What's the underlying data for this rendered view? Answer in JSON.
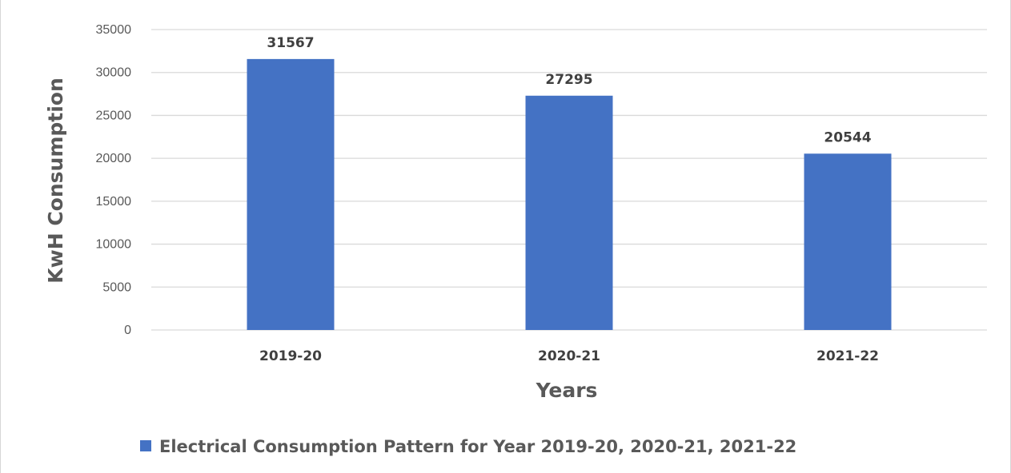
{
  "colors": {
    "bar": "#4472c4",
    "grid": "#d9d9d9",
    "text": "#595959"
  },
  "chart_data": {
    "type": "bar",
    "title": "",
    "xlabel": "Years",
    "ylabel": "KwH Consumption",
    "categories": [
      "2019-20",
      "2020-21",
      "2021-22"
    ],
    "series": [
      {
        "name": "Electrical Consumption Pattern for Year 2019-20, 2020-21, 2021-22",
        "values": [
          31567,
          27295,
          20544
        ]
      }
    ],
    "ylim": [
      0,
      35000
    ],
    "yticks": [
      "0",
      "5000",
      "10000",
      "15000",
      "20000",
      "25000",
      "30000",
      "35000"
    ],
    "data_labels": [
      "31567",
      "27295",
      "20544"
    ],
    "grid": true,
    "legend_position": "bottom"
  }
}
